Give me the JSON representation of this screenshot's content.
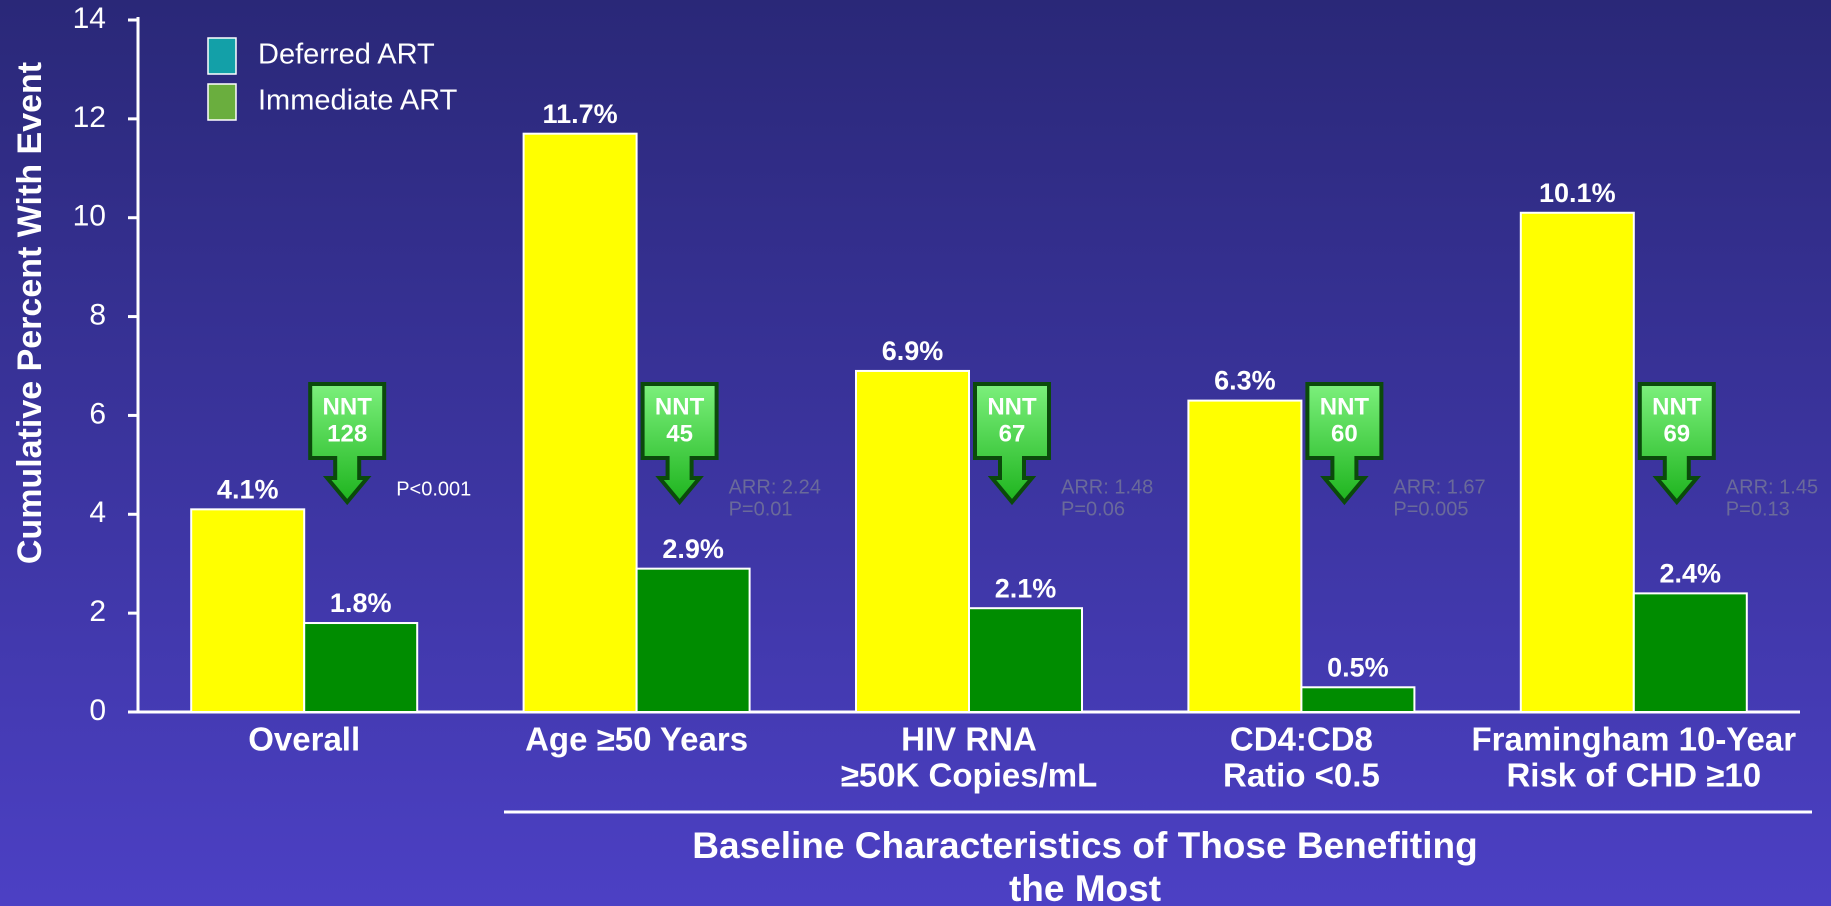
{
  "chart_data": {
    "type": "bar",
    "y_label": "Cumulative Percent With Event",
    "categories": [
      [
        "Overall"
      ],
      [
        "Age ≥50 Years"
      ],
      [
        "HIV RNA",
        "≥50K Copies/mL"
      ],
      [
        "CD4:CD8",
        "Ratio <0.5"
      ],
      [
        "Framingham 10-Year",
        "Risk of CHD ≥10"
      ]
    ],
    "series": [
      {
        "name": "Deferred ART",
        "color": "#ffff00",
        "legend_color": "#13a0a8",
        "values": [
          4.1,
          11.7,
          6.9,
          6.3,
          10.1
        ],
        "value_labels": [
          "4.1%",
          "11.7%",
          "6.9%",
          "6.3%",
          "10.1%"
        ]
      },
      {
        "name": "Immediate ART",
        "color": "#008c00",
        "legend_color": "#6aae3e",
        "values": [
          1.8,
          2.9,
          2.1,
          0.5,
          2.4
        ],
        "value_labels": [
          "1.8%",
          "2.9%",
          "2.1%",
          "0.5%",
          "2.4%"
        ]
      }
    ],
    "annotations": [
      {
        "lines": [
          "NNT",
          "128"
        ],
        "notes": [
          "P<0.001"
        ]
      },
      {
        "lines": [
          "NNT",
          "45"
        ],
        "notes": [
          "ARR: 2.24",
          "P=0.01"
        ]
      },
      {
        "lines": [
          "NNT",
          "67"
        ],
        "notes": [
          "ARR: 1.48",
          "P=0.06"
        ]
      },
      {
        "lines": [
          "NNT",
          "60"
        ],
        "notes": [
          "ARR: 1.67",
          "P=0.005"
        ]
      },
      {
        "lines": [
          "NNT",
          "69"
        ],
        "notes": [
          "ARR: 1.45",
          "P=0.13"
        ]
      }
    ],
    "bracket_label": [
      "Baseline Characteristics of Those Benefiting",
      "the Most"
    ],
    "ylim": [
      0,
      14
    ],
    "yticks": [
      0,
      2,
      4,
      6,
      8,
      10,
      12,
      14
    ],
    "grid": false
  }
}
